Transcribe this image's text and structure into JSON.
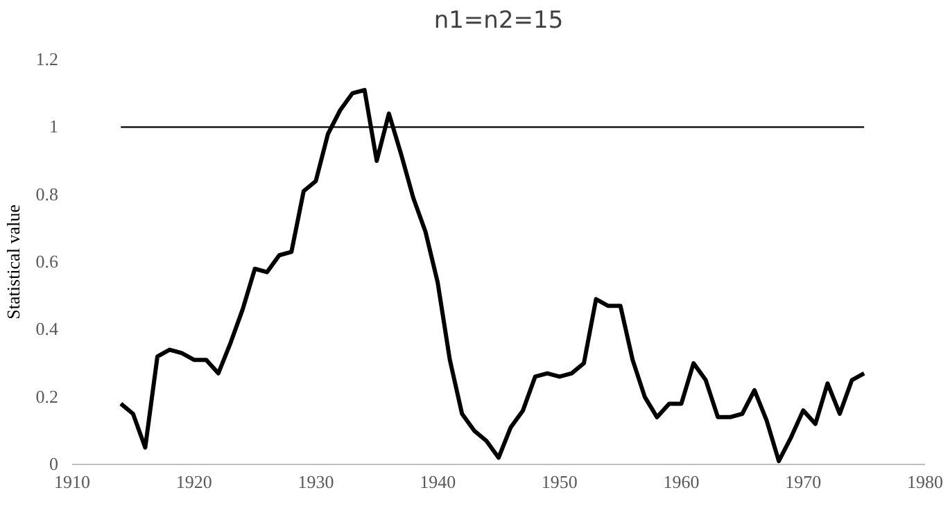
{
  "chart_data": {
    "type": "line",
    "title": "n1=n2=15",
    "ylabel": "Statistical  value",
    "xlim": [
      1910,
      1980
    ],
    "xticks": [
      1910,
      1920,
      1930,
      1940,
      1950,
      1960,
      1970,
      1980
    ],
    "ylim": [
      0,
      1.2
    ],
    "yticks": [
      0,
      0.2,
      0.4,
      0.6,
      0.8,
      1,
      1.2
    ],
    "series": [
      {
        "color": "#000000",
        "x": [
          1914,
          1915,
          1916,
          1917,
          1918,
          1919,
          1920,
          1921,
          1922,
          1923,
          1924,
          1925,
          1926,
          1927,
          1928,
          1929,
          1930,
          1931,
          1932,
          1933,
          1934,
          1935,
          1936,
          1937,
          1938,
          1939,
          1940,
          1941,
          1942,
          1943,
          1944,
          1945,
          1946,
          1947,
          1948,
          1949,
          1950,
          1951,
          1952,
          1953,
          1954,
          1955,
          1956,
          1957,
          1958,
          1959,
          1960,
          1961,
          1962,
          1963,
          1964,
          1965,
          1966,
          1967,
          1968,
          1969,
          1970,
          1971,
          1972,
          1973,
          1974,
          1975
        ],
        "values": [
          0.18,
          0.15,
          0.05,
          0.32,
          0.34,
          0.33,
          0.31,
          0.31,
          0.27,
          0.36,
          0.46,
          0.58,
          0.57,
          0.62,
          0.63,
          0.81,
          0.84,
          0.98,
          1.05,
          1.1,
          1.11,
          0.9,
          1.04,
          0.92,
          0.79,
          0.69,
          0.54,
          0.31,
          0.15,
          0.1,
          0.07,
          0.02,
          0.11,
          0.16,
          0.26,
          0.27,
          0.26,
          0.27,
          0.3,
          0.49,
          0.47,
          0.47,
          0.31,
          0.2,
          0.14,
          0.18,
          0.18,
          0.3,
          0.25,
          0.14,
          0.14,
          0.15,
          0.22,
          0.13,
          0.01,
          0.08,
          0.16,
          0.12,
          0.24,
          0.15,
          0.25,
          0.27
        ]
      },
      {
        "color": "#000000",
        "line_style": "solid",
        "x": [
          1914,
          1975
        ],
        "values": [
          1,
          1
        ]
      }
    ]
  }
}
